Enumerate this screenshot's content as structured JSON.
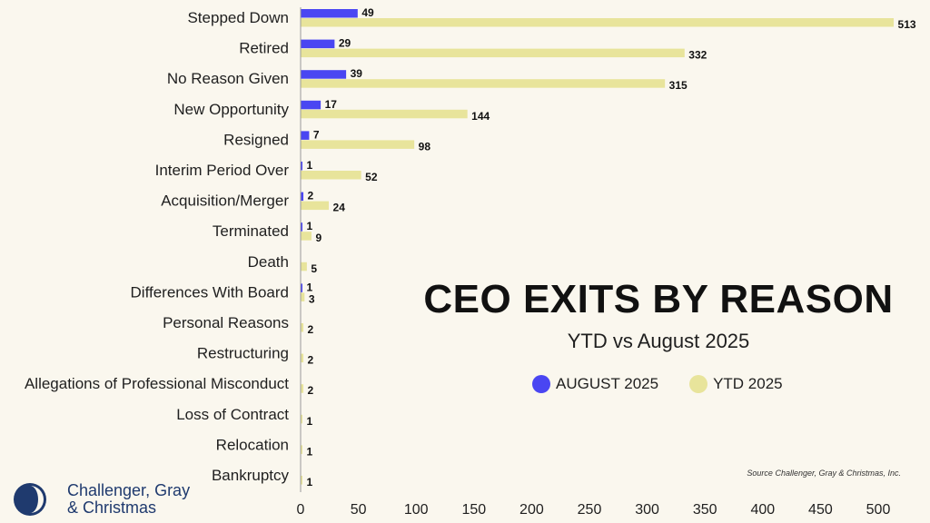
{
  "chart_data": {
    "type": "bar",
    "orientation": "horizontal",
    "title": "CEO EXITS BY REASON",
    "subtitle": "YTD vs August 2025",
    "categories": [
      "Stepped Down",
      "Retired",
      "No Reason Given",
      "New Opportunity",
      "Resigned",
      "Interim Period Over",
      "Acquisition/Merger",
      "Terminated",
      "Death",
      "Differences With Board",
      "Personal Reasons",
      "Restructuring",
      "Allegations of Professional Misconduct",
      "Loss of Contract",
      "Relocation",
      "Bankruptcy"
    ],
    "series": [
      {
        "name": "AUGUST 2025",
        "color": "#4a46f2",
        "values": [
          49,
          29,
          39,
          17,
          7,
          1,
          2,
          1,
          null,
          1,
          null,
          null,
          null,
          null,
          null,
          null
        ]
      },
      {
        "name": "YTD 2025",
        "color": "#e8e49b",
        "values": [
          513,
          332,
          315,
          144,
          98,
          52,
          24,
          9,
          5,
          3,
          2,
          2,
          2,
          1,
          1,
          1
        ]
      }
    ],
    "xlim": [
      0,
      500
    ],
    "xticks": [
      0,
      50,
      100,
      150,
      200,
      250,
      300,
      350,
      400,
      450,
      500
    ],
    "legend_position": "right-center"
  },
  "source": "Source Challenger, Gray & Christmas, Inc.",
  "logo": {
    "line1": "Challenger, Gray",
    "line2": "& Christmas",
    "icon": "challenger-logo-icon"
  }
}
